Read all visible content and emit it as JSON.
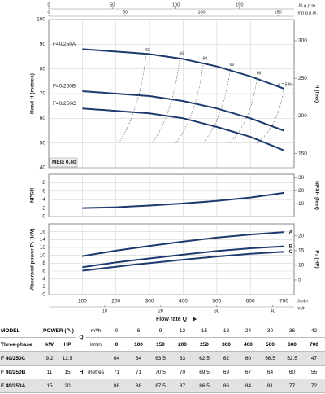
{
  "chart_data": [
    {
      "type": "line",
      "y_label": "Head H (metres)",
      "y2_label": "H (feet)",
      "xlim": [
        0,
        730
      ],
      "ylim": [
        40,
        100
      ],
      "yticks": [
        40,
        50,
        60,
        70,
        80,
        90,
        100
      ],
      "y2lim": [
        131.2,
        328.1
      ],
      "y2ticks": [
        150,
        200,
        250,
        300
      ],
      "top_axes": [
        {
          "label": "US g.p.m.",
          "lim": [
            0,
            192.9
          ],
          "ticks": [
            0,
            50,
            100,
            150
          ]
        },
        {
          "label": "Imp g.p.m.",
          "lim": [
            0,
            160.6
          ],
          "ticks": [
            0,
            50,
            100,
            150
          ]
        }
      ],
      "grid": true,
      "series_label_position": "start",
      "x": [
        100,
        150,
        200,
        250,
        300,
        400,
        500,
        600,
        700
      ],
      "series": [
        {
          "name": "F40/250A",
          "color": "#1d3a6e",
          "values": [
            88,
            87.5,
            87,
            86.5,
            86,
            84,
            81,
            77,
            72
          ]
        },
        {
          "name": "F40/250B",
          "color": "#1d3a6e",
          "values": [
            71,
            70.5,
            70,
            69.5,
            69,
            67,
            64,
            60,
            55
          ]
        },
        {
          "name": "F40/250C",
          "color": "#1d3a6e",
          "values": [
            64,
            63.5,
            63,
            62.5,
            62,
            60,
            56.5,
            52.5,
            47
          ]
        }
      ],
      "efficiency_labels": [
        {
          "x": 290,
          "y": 86,
          "label": "62"
        },
        {
          "x": 390,
          "y": 84.5,
          "label": "66"
        },
        {
          "x": 460,
          "y": 82.5,
          "label": "68"
        },
        {
          "x": 540,
          "y": 80,
          "label": "69"
        },
        {
          "x": 620,
          "y": 76.5,
          "label": "66"
        },
        {
          "x": 700,
          "y": 72,
          "label": "η = 53%"
        }
      ],
      "badge": "MEI≥ 0.40"
    },
    {
      "type": "line",
      "y_label": "NPSH",
      "y2_label": "NPSH (feet)",
      "ylim": [
        0,
        10
      ],
      "yticks": [
        0,
        2,
        4,
        6,
        8
      ],
      "y2lim": [
        0,
        32.8
      ],
      "y2ticks": [
        10,
        20,
        30
      ],
      "grid": true,
      "x": [
        100,
        150,
        200,
        250,
        300,
        400,
        500,
        600,
        700
      ],
      "series": [
        {
          "color": "#1d3a6e",
          "values": [
            2.0,
            2.1,
            2.2,
            2.4,
            2.6,
            3.1,
            3.7,
            4.5,
            5.6
          ]
        }
      ]
    },
    {
      "type": "line",
      "y_label": "Absorbed power P₂ (kW)",
      "y2_label": "P₂ (HP)",
      "xlim": [
        0,
        730
      ],
      "xticks": [
        100,
        200,
        300,
        400,
        500,
        600,
        700
      ],
      "x_unit": "l/min",
      "x2_axis": {
        "label": "m³/h",
        "lim": [
          0,
          43.8
        ],
        "ticks": [
          10,
          20,
          30,
          40
        ]
      },
      "x_label": "Flow rate Q",
      "ylim": [
        0,
        18
      ],
      "yticks": [
        0,
        2,
        4,
        6,
        8,
        10,
        12,
        14,
        16
      ],
      "y2lim": [
        0,
        24.1
      ],
      "y2ticks": [
        5,
        10,
        15,
        20
      ],
      "grid": true,
      "series_label_position": "end",
      "x": [
        100,
        150,
        200,
        250,
        300,
        400,
        500,
        600,
        700
      ],
      "series": [
        {
          "name": "A",
          "color": "#1d3a6e",
          "values": [
            9.8,
            10.5,
            11.2,
            11.8,
            12.4,
            13.5,
            14.5,
            15.3,
            15.9
          ]
        },
        {
          "name": "B",
          "color": "#1d3a6e",
          "values": [
            7.0,
            7.6,
            8.2,
            8.7,
            9.2,
            10.2,
            11.1,
            11.8,
            12.3
          ]
        },
        {
          "name": "C",
          "color": "#1d3a6e",
          "values": [
            6.1,
            6.6,
            7.1,
            7.6,
            8.0,
            8.9,
            9.7,
            10.4,
            10.9
          ]
        }
      ]
    }
  ],
  "table": {
    "model_label": "MODEL",
    "phase_label": "Three-phase",
    "power_label": "POWER (P₂)",
    "kw_label": "kW",
    "hp_label": "HP",
    "q_label": "Q",
    "m3h_unit": "m³/h",
    "lmin_unit": "l/min",
    "h_label": "H",
    "h_unit": "metres",
    "m3h": [
      0,
      6,
      9,
      12,
      15,
      18,
      24,
      30,
      36,
      42
    ],
    "lmin": [
      0,
      100,
      150,
      200,
      250,
      300,
      400,
      500,
      600,
      700
    ],
    "rows": [
      {
        "model": "F 40/250C",
        "kw": 9.2,
        "hp": 12.5,
        "head": [
          64,
          64,
          63.5,
          63,
          62.5,
          62,
          60,
          56.5,
          52.5,
          47
        ]
      },
      {
        "model": "F 40/250B",
        "kw": 11,
        "hp": 15,
        "head": [
          71,
          71,
          70.5,
          70,
          69.5,
          69,
          67,
          64,
          60,
          55
        ]
      },
      {
        "model": "F 40/250A",
        "kw": 15,
        "hp": 20,
        "head": [
          88,
          88,
          87.5,
          87,
          86.5,
          86,
          84,
          81,
          77,
          72
        ]
      }
    ]
  }
}
